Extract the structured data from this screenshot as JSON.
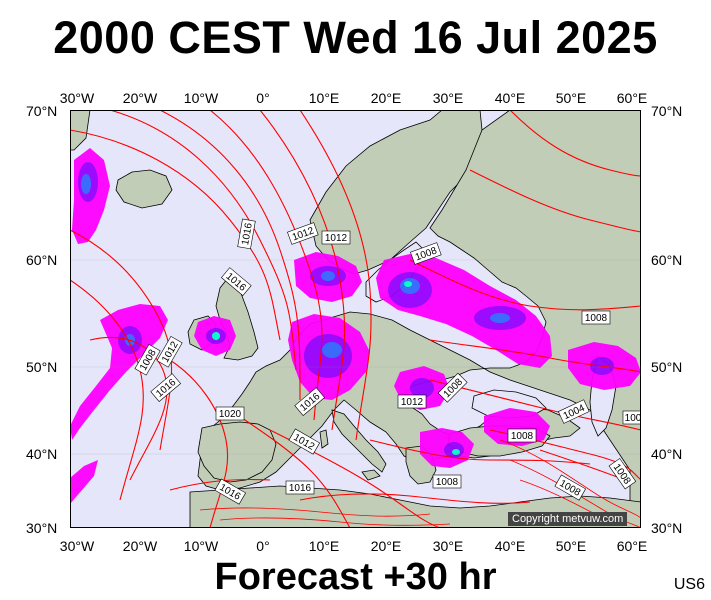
{
  "title": "2000 CEST Wed 16 Jul 2025",
  "footer": "Forecast +30 hr",
  "map_code": "US6",
  "copyright": "Copyright metvuw.com",
  "axes": {
    "lon_ticks": [
      "30°W",
      "20°W",
      "10°W",
      "0°",
      "10°E",
      "20°E",
      "30°E",
      "40°E",
      "50°E",
      "60°E"
    ],
    "lat_ticks": [
      "70°N",
      "60°N",
      "50°N",
      "40°N",
      "30°N"
    ]
  },
  "isobar_labels": [
    "1016",
    "1012",
    "1012",
    "1008",
    "1016",
    "1012",
    "1008",
    "1016",
    "1008",
    "1016",
    "1012",
    "1008",
    "1004",
    "100",
    "1008",
    "1020",
    "1012",
    "1016",
    "1016",
    "1008",
    "1008",
    "1008"
  ],
  "colors": {
    "ocean": "#e6e6fa",
    "land": "#c2cdb8",
    "isobar": "#ff0000",
    "coast": "#000000",
    "rain_light": "#ff00ff",
    "rain_mid": "#9900ff",
    "rain_heavy": "#3366ff",
    "rain_extreme": "#00ffcc"
  }
}
